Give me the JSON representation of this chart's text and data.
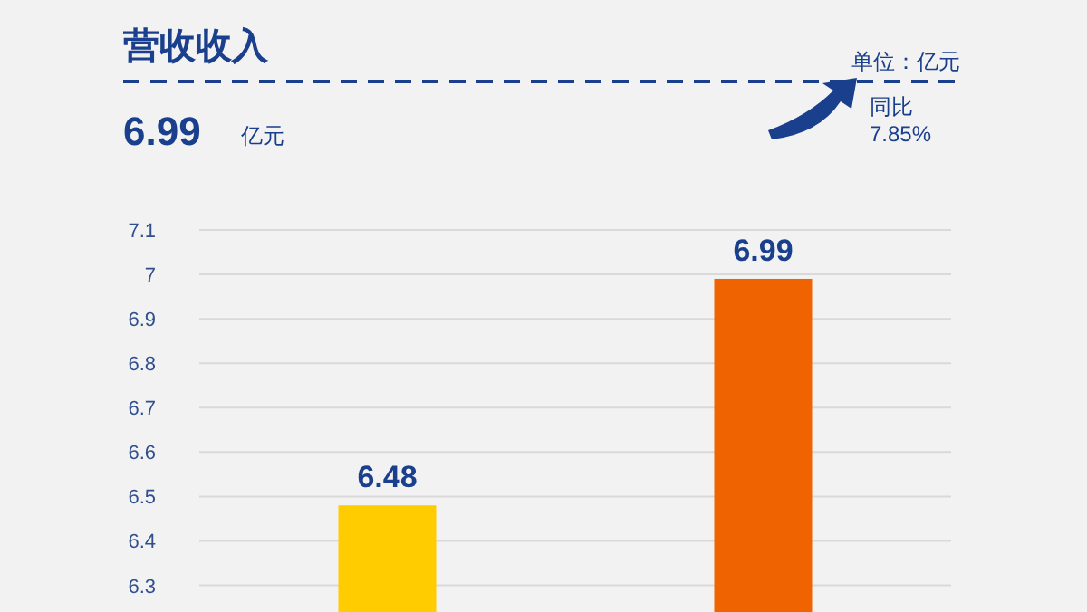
{
  "chart_data": {
    "type": "bar",
    "title": "营收收入",
    "annotations": [
      "单位：亿元",
      "6.99",
      "亿元",
      "同比",
      "7.85%"
    ],
    "categories": [
      null,
      null
    ],
    "values": [
      6.48,
      6.99
    ],
    "colors": [
      "#ffcc00",
      "#ef6400"
    ],
    "ylim": [
      6.24,
      7.1
    ],
    "yticks": [
      6.3,
      6.4,
      6.5,
      6.6,
      6.7,
      6.8,
      6.9,
      {
        "value": 7,
        "label": "7"
      },
      7.1
    ],
    "grid": "y",
    "tick_labels": "y",
    "data_labels": true
  }
}
